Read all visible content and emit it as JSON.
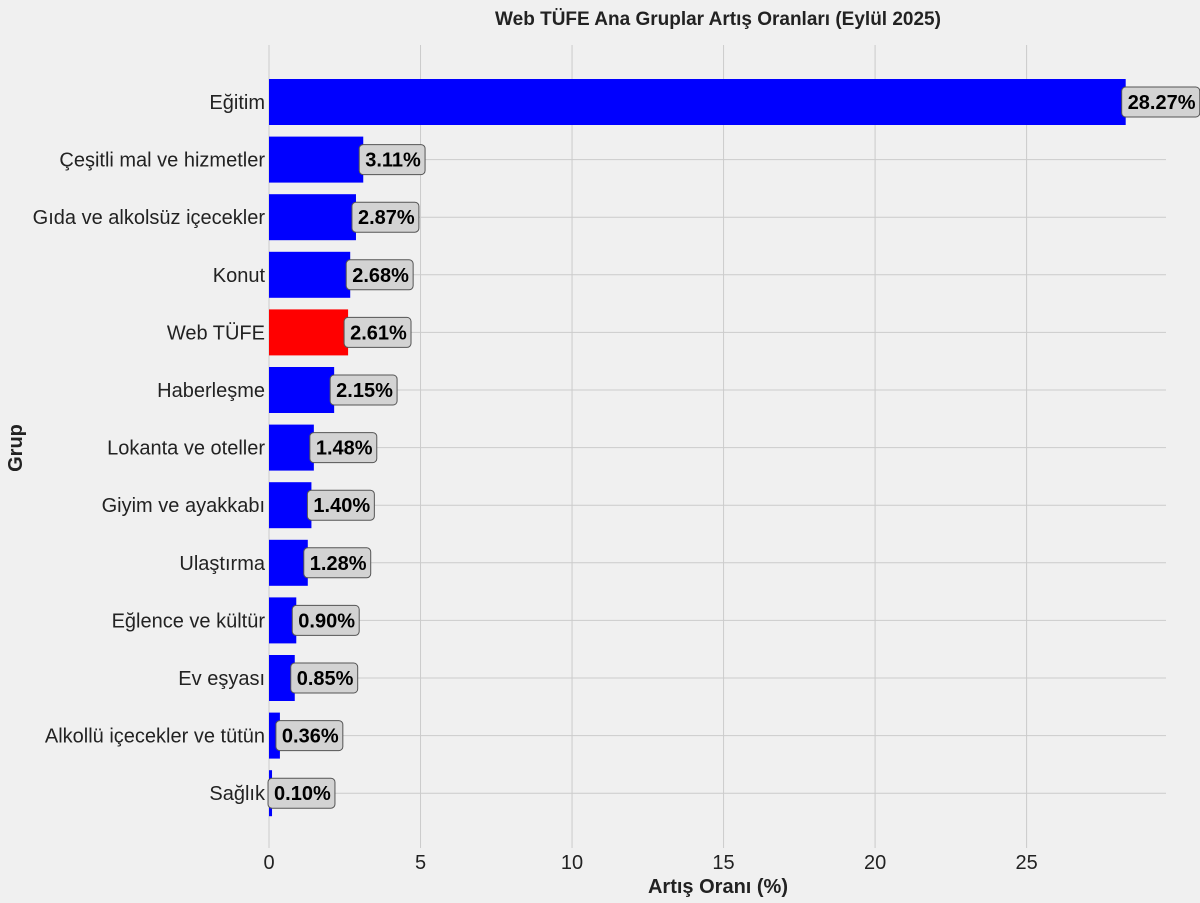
{
  "chart_data": {
    "type": "bar",
    "orientation": "horizontal",
    "title": "Web TÜFE Ana Gruplar Artış Oranları (Eylül 2025)",
    "xlabel": "Artış Oranı (%)",
    "ylabel": "Grup",
    "xlim": [
      0,
      29.6
    ],
    "xticks": [
      0,
      5,
      10,
      15,
      20,
      25
    ],
    "grid": true,
    "categories": [
      "Eğitim",
      "Çeşitli mal ve hizmetler",
      "Gıda ve alkolsüz içecekler",
      "Konut",
      "Web TÜFE",
      "Haberleşme",
      "Lokanta ve oteller",
      "Giyim ve ayakkabı",
      "Ulaştırma",
      "Eğlence ve kültür",
      "Ev eşyası",
      "Alkollü içecekler ve tütün",
      "Sağlık"
    ],
    "values": [
      28.27,
      3.11,
      2.87,
      2.68,
      2.61,
      2.15,
      1.48,
      1.4,
      1.28,
      0.9,
      0.85,
      0.36,
      0.1
    ],
    "data_labels": [
      "28.27%",
      "3.11%",
      "2.87%",
      "2.68%",
      "2.61%",
      "2.15%",
      "1.48%",
      "1.40%",
      "1.28%",
      "0.90%",
      "0.85%",
      "0.36%",
      "0.10%"
    ],
    "highlight_category": "Web TÜFE",
    "colors": {
      "bar": "#0000ff",
      "highlight": "#ff0000",
      "label_box": "#d3d3d3",
      "background": "#f0f0f0",
      "grid": "#cbcbcb"
    }
  }
}
